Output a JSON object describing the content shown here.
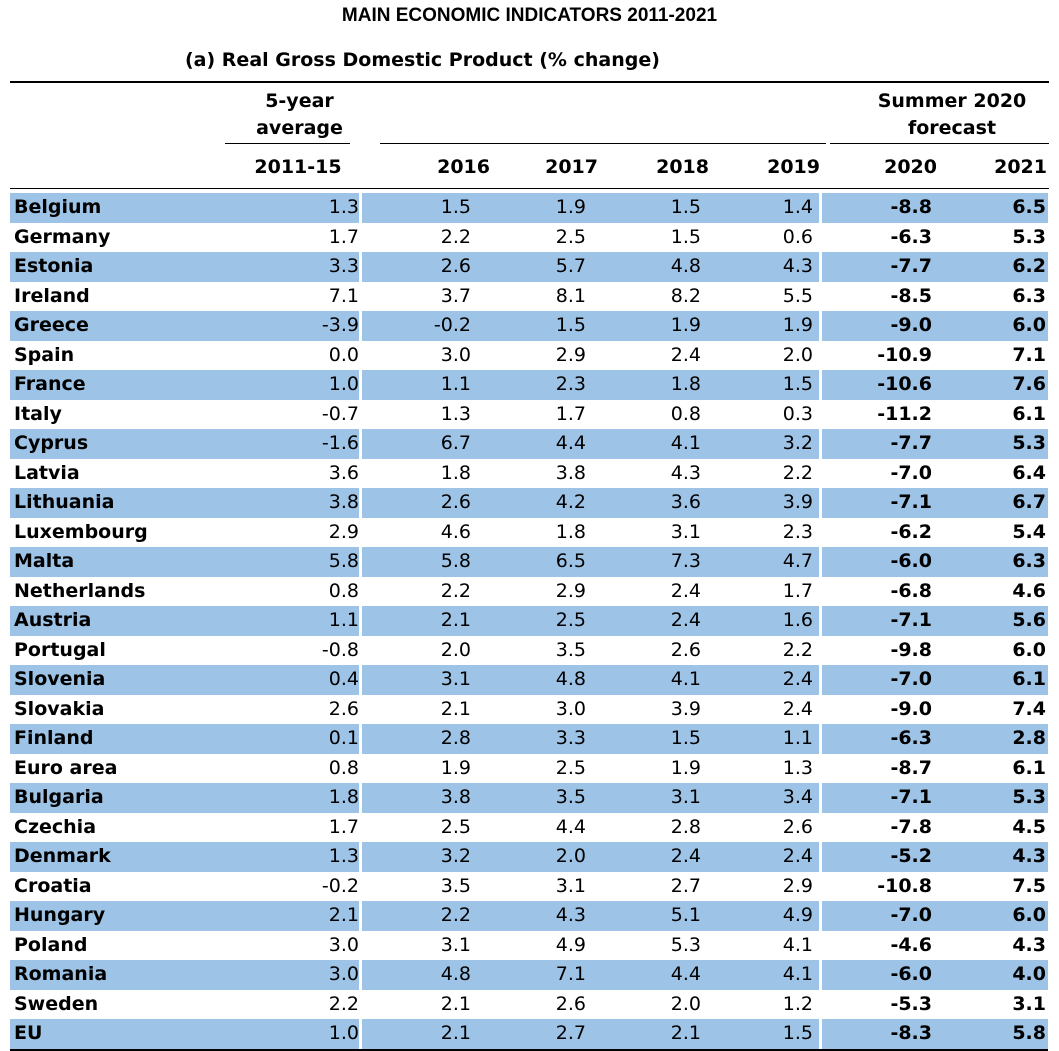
{
  "title": "MAIN ECONOMIC INDICATORS 2011-2021",
  "subtitle": "(a) Real Gross Domestic Product (% change)",
  "header": {
    "avg_line1": "5-year",
    "avg_line2": "average",
    "forecast_line1": "Summer 2020",
    "forecast_line2": "forecast",
    "columns": [
      "2011-15",
      "2016",
      "2017",
      "2018",
      "2019",
      "2020",
      "2021"
    ]
  },
  "rows": [
    {
      "name": "Belgium",
      "v": [
        "1.3",
        "1.5",
        "1.9",
        "1.5",
        "1.4",
        "-8.8",
        "6.5"
      ]
    },
    {
      "name": "Germany",
      "v": [
        "1.7",
        "2.2",
        "2.5",
        "1.5",
        "0.6",
        "-6.3",
        "5.3"
      ]
    },
    {
      "name": "Estonia",
      "v": [
        "3.3",
        "2.6",
        "5.7",
        "4.8",
        "4.3",
        "-7.7",
        "6.2"
      ]
    },
    {
      "name": "Ireland",
      "v": [
        "7.1",
        "3.7",
        "8.1",
        "8.2",
        "5.5",
        "-8.5",
        "6.3"
      ]
    },
    {
      "name": "Greece",
      "v": [
        "-3.9",
        "-0.2",
        "1.5",
        "1.9",
        "1.9",
        "-9.0",
        "6.0"
      ]
    },
    {
      "name": "Spain",
      "v": [
        "0.0",
        "3.0",
        "2.9",
        "2.4",
        "2.0",
        "-10.9",
        "7.1"
      ]
    },
    {
      "name": "France",
      "v": [
        "1.0",
        "1.1",
        "2.3",
        "1.8",
        "1.5",
        "-10.6",
        "7.6"
      ]
    },
    {
      "name": "Italy",
      "v": [
        "-0.7",
        "1.3",
        "1.7",
        "0.8",
        "0.3",
        "-11.2",
        "6.1"
      ]
    },
    {
      "name": "Cyprus",
      "v": [
        "-1.6",
        "6.7",
        "4.4",
        "4.1",
        "3.2",
        "-7.7",
        "5.3"
      ]
    },
    {
      "name": "Latvia",
      "v": [
        "3.6",
        "1.8",
        "3.8",
        "4.3",
        "2.2",
        "-7.0",
        "6.4"
      ]
    },
    {
      "name": "Lithuania",
      "v": [
        "3.8",
        "2.6",
        "4.2",
        "3.6",
        "3.9",
        "-7.1",
        "6.7"
      ]
    },
    {
      "name": "Luxembourg",
      "v": [
        "2.9",
        "4.6",
        "1.8",
        "3.1",
        "2.3",
        "-6.2",
        "5.4"
      ]
    },
    {
      "name": "Malta",
      "v": [
        "5.8",
        "5.8",
        "6.5",
        "7.3",
        "4.7",
        "-6.0",
        "6.3"
      ]
    },
    {
      "name": "Netherlands",
      "v": [
        "0.8",
        "2.2",
        "2.9",
        "2.4",
        "1.7",
        "-6.8",
        "4.6"
      ]
    },
    {
      "name": "Austria",
      "v": [
        "1.1",
        "2.1",
        "2.5",
        "2.4",
        "1.6",
        "-7.1",
        "5.6"
      ]
    },
    {
      "name": "Portugal",
      "v": [
        "-0.8",
        "2.0",
        "3.5",
        "2.6",
        "2.2",
        "-9.8",
        "6.0"
      ]
    },
    {
      "name": "Slovenia",
      "v": [
        "0.4",
        "3.1",
        "4.8",
        "4.1",
        "2.4",
        "-7.0",
        "6.1"
      ]
    },
    {
      "name": "Slovakia",
      "v": [
        "2.6",
        "2.1",
        "3.0",
        "3.9",
        "2.4",
        "-9.0",
        "7.4"
      ]
    },
    {
      "name": "Finland",
      "v": [
        "0.1",
        "2.8",
        "3.3",
        "1.5",
        "1.1",
        "-6.3",
        "2.8"
      ]
    },
    {
      "name": "Euro area",
      "v": [
        "0.8",
        "1.9",
        "2.5",
        "1.9",
        "1.3",
        "-8.7",
        "6.1"
      ]
    },
    {
      "name": "Bulgaria",
      "v": [
        "1.8",
        "3.8",
        "3.5",
        "3.1",
        "3.4",
        "-7.1",
        "5.3"
      ]
    },
    {
      "name": "Czechia",
      "v": [
        "1.7",
        "2.5",
        "4.4",
        "2.8",
        "2.6",
        "-7.8",
        "4.5"
      ]
    },
    {
      "name": "Denmark",
      "v": [
        "1.3",
        "3.2",
        "2.0",
        "2.4",
        "2.4",
        "-5.2",
        "4.3"
      ]
    },
    {
      "name": "Croatia",
      "v": [
        "-0.2",
        "3.5",
        "3.1",
        "2.7",
        "2.9",
        "-10.8",
        "7.5"
      ]
    },
    {
      "name": "Hungary",
      "v": [
        "2.1",
        "2.2",
        "4.3",
        "5.1",
        "4.9",
        "-7.0",
        "6.0"
      ]
    },
    {
      "name": "Poland",
      "v": [
        "3.0",
        "3.1",
        "4.9",
        "5.3",
        "4.1",
        "-4.6",
        "4.3"
      ]
    },
    {
      "name": "Romania",
      "v": [
        "3.0",
        "4.8",
        "7.1",
        "4.4",
        "4.1",
        "-6.0",
        "4.0"
      ]
    },
    {
      "name": "Sweden",
      "v": [
        "2.2",
        "2.1",
        "2.6",
        "2.0",
        "1.2",
        "-5.3",
        "3.1"
      ]
    },
    {
      "name": "EU",
      "v": [
        "1.0",
        "2.1",
        "2.7",
        "2.1",
        "1.5",
        "-8.3",
        "5.8"
      ]
    }
  ],
  "colors": {
    "row_shade": "#9dc3e6",
    "text": "#000000"
  }
}
